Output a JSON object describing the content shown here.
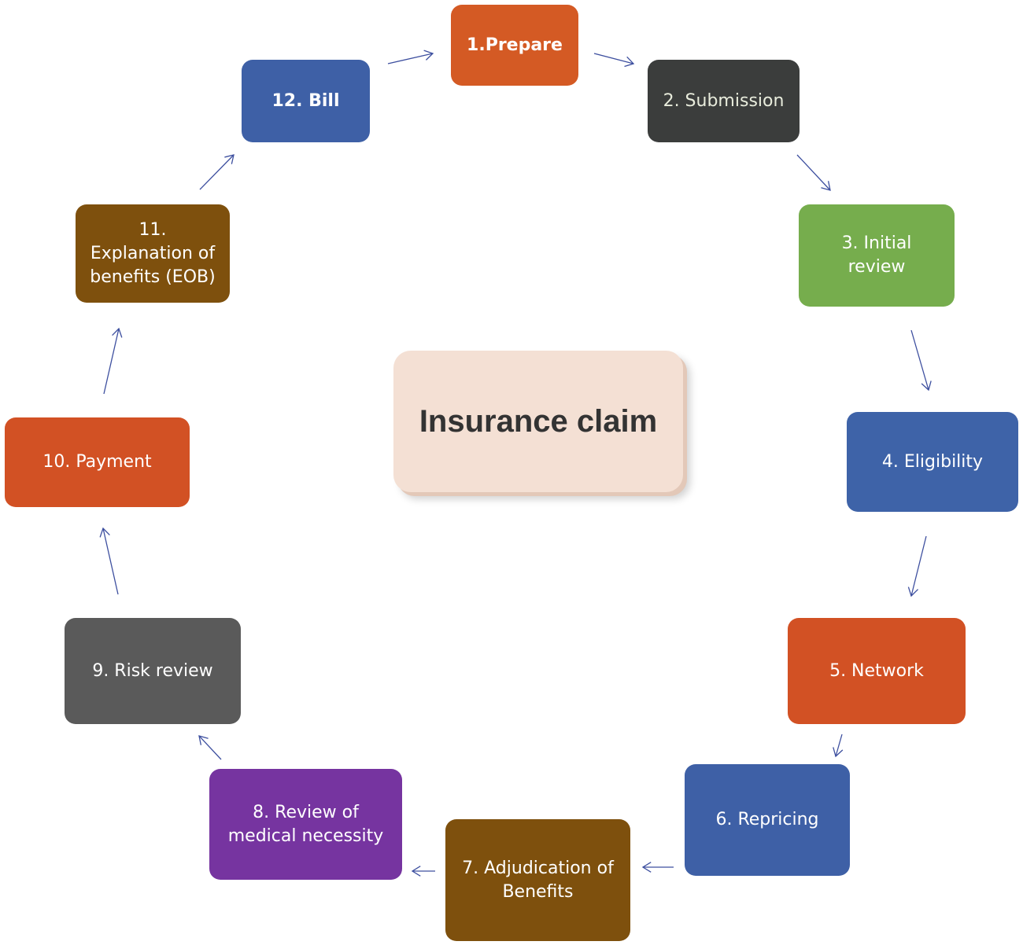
{
  "center": {
    "label": "Insurance claim",
    "color": "#f4e0d4"
  },
  "arrow_color": "#3d4f9f",
  "steps": [
    {
      "label": "1.Prepare",
      "color": "#d45a24",
      "text_color": "#ffffff"
    },
    {
      "label": "2. Submission",
      "color": "#3b3d3c",
      "text_color": "#e8ecdc"
    },
    {
      "label": "3. Initial\nreview",
      "color": "#76ad4d",
      "text_color": "#ffffff"
    },
    {
      "label": "4. Eligibility",
      "color": "#3e63a8",
      "text_color": "#ffffff"
    },
    {
      "label": "5. Network",
      "color": "#d25124",
      "text_color": "#ffffff"
    },
    {
      "label": "6. Repricing",
      "color": "#3e60a6",
      "text_color": "#ffffff"
    },
    {
      "label": "7. Adjudication of\nBenefits",
      "color": "#7e500d",
      "text_color": "#ffffff"
    },
    {
      "label": "8. Review of\nmedical necessity",
      "color": "#7634a0",
      "text_color": "#ffffff"
    },
    {
      "label": "9. Risk review",
      "color": "#5a5a5a",
      "text_color": "#ffffff"
    },
    {
      "label": "10. Payment",
      "color": "#d25124",
      "text_color": "#ffffff"
    },
    {
      "label": "11.\nExplanation of\nbenefits (EOB)",
      "color": "#7e500d",
      "text_color": "#ffffff"
    },
    {
      "label": "12. Bill",
      "color": "#3e60a6",
      "text_color": "#ffffff"
    }
  ]
}
